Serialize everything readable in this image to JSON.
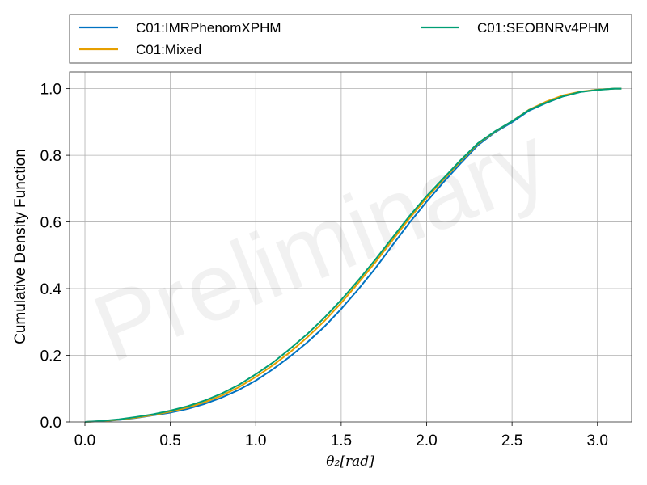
{
  "chart_data": {
    "type": "line",
    "title": "",
    "xlabel": "θ₂[rad]",
    "ylabel": "Cumulative Density Function",
    "xlim": [
      -0.09,
      3.2
    ],
    "ylim": [
      0.0,
      1.05
    ],
    "xticks": [
      0.0,
      0.5,
      1.0,
      1.5,
      2.0,
      2.5,
      3.0
    ],
    "xtick_labels": [
      "0.0",
      "0.5",
      "1.0",
      "1.5",
      "2.0",
      "2.5",
      "3.0"
    ],
    "yticks": [
      0.0,
      0.2,
      0.4,
      0.6,
      0.8,
      1.0
    ],
    "ytick_labels": [
      "0.0",
      "0.2",
      "0.4",
      "0.6",
      "0.8",
      "1.0"
    ],
    "grid": true,
    "legend_position": "above-plot",
    "watermark": "Preliminary",
    "colors": {
      "blue": "#0072C1",
      "orange": "#E69F00",
      "green": "#009E73"
    },
    "series": [
      {
        "name": "C01:IMRPhenomXPHM",
        "color": "#0072C1",
        "x": [
          0.0,
          0.1,
          0.2,
          0.3,
          0.4,
          0.5,
          0.6,
          0.7,
          0.8,
          0.9,
          1.0,
          1.1,
          1.2,
          1.3,
          1.4,
          1.5,
          1.6,
          1.7,
          1.8,
          1.9,
          2.0,
          2.1,
          2.2,
          2.3,
          2.4,
          2.5,
          2.6,
          2.7,
          2.8,
          2.9,
          3.0,
          3.1,
          3.14
        ],
        "y": [
          0.0,
          0.002,
          0.006,
          0.012,
          0.02,
          0.028,
          0.039,
          0.054,
          0.073,
          0.096,
          0.124,
          0.158,
          0.196,
          0.238,
          0.285,
          0.339,
          0.398,
          0.461,
          0.53,
          0.598,
          0.661,
          0.72,
          0.776,
          0.83,
          0.869,
          0.899,
          0.934,
          0.957,
          0.977,
          0.99,
          0.997,
          1.0,
          1.0
        ]
      },
      {
        "name": "C01:Mixed",
        "color": "#E69F00",
        "x": [
          0.0,
          0.1,
          0.2,
          0.3,
          0.4,
          0.5,
          0.6,
          0.7,
          0.8,
          0.9,
          1.0,
          1.1,
          1.2,
          1.3,
          1.4,
          1.5,
          1.6,
          1.7,
          1.8,
          1.9,
          2.0,
          2.1,
          2.2,
          2.3,
          2.4,
          2.5,
          2.6,
          2.7,
          2.8,
          2.9,
          3.0,
          3.1,
          3.14
        ],
        "y": [
          0.0,
          0.002,
          0.007,
          0.013,
          0.021,
          0.031,
          0.043,
          0.059,
          0.079,
          0.104,
          0.135,
          0.17,
          0.209,
          0.253,
          0.302,
          0.357,
          0.417,
          0.479,
          0.545,
          0.611,
          0.672,
          0.728,
          0.783,
          0.834,
          0.871,
          0.902,
          0.937,
          0.961,
          0.98,
          0.991,
          0.997,
          1.0,
          1.0
        ]
      },
      {
        "name": "C01:SEOBNRv4PHM",
        "color": "#009E73",
        "x": [
          0.0,
          0.1,
          0.2,
          0.3,
          0.4,
          0.5,
          0.6,
          0.7,
          0.8,
          0.9,
          1.0,
          1.1,
          1.2,
          1.3,
          1.4,
          1.5,
          1.6,
          1.7,
          1.8,
          1.9,
          2.0,
          2.1,
          2.2,
          2.3,
          2.4,
          2.5,
          2.6,
          2.7,
          2.8,
          2.9,
          3.0,
          3.1,
          3.14
        ],
        "y": [
          0.0,
          0.003,
          0.008,
          0.015,
          0.023,
          0.034,
          0.047,
          0.064,
          0.085,
          0.111,
          0.143,
          0.178,
          0.219,
          0.263,
          0.312,
          0.366,
          0.425,
          0.487,
          0.553,
          0.618,
          0.678,
          0.732,
          0.786,
          0.836,
          0.872,
          0.902,
          0.936,
          0.958,
          0.977,
          0.99,
          0.996,
          1.0,
          1.0
        ]
      }
    ]
  }
}
